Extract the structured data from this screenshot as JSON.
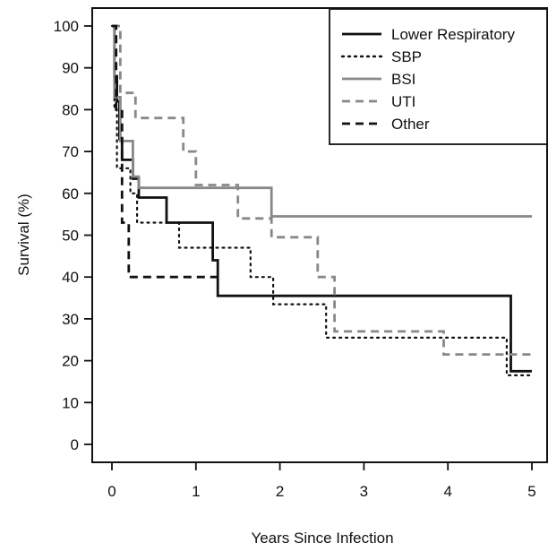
{
  "chart_data": {
    "type": "line",
    "title": "",
    "xlabel": "Years Since Infection",
    "ylabel": "Survival (%)",
    "xlim": [
      0,
      5
    ],
    "ylim": [
      0,
      100
    ],
    "xticks": [
      0,
      1,
      2,
      3,
      4,
      5
    ],
    "yticks": [
      0,
      10,
      20,
      30,
      40,
      50,
      60,
      70,
      80,
      90,
      100
    ],
    "grid": false,
    "legend_position": "top-right",
    "series": [
      {
        "name": "Lower Respiratory",
        "color": "#111111",
        "dash": "solid",
        "steps": [
          [
            0,
            100
          ],
          [
            0.03,
            88
          ],
          [
            0.06,
            82
          ],
          [
            0.09,
            73
          ],
          [
            0.12,
            68
          ],
          [
            0.25,
            63.5
          ],
          [
            0.32,
            59
          ],
          [
            0.65,
            53
          ],
          [
            1.2,
            44
          ],
          [
            1.26,
            35.5
          ],
          [
            4.75,
            17.5
          ],
          [
            5,
            17.5
          ]
        ]
      },
      {
        "name": "SBP",
        "color": "#111111",
        "dash": "dotted",
        "steps": [
          [
            0,
            100
          ],
          [
            0.03,
            80
          ],
          [
            0.06,
            66
          ],
          [
            0.22,
            60
          ],
          [
            0.3,
            53
          ],
          [
            0.8,
            47
          ],
          [
            1.65,
            40
          ],
          [
            1.92,
            33.5
          ],
          [
            2.55,
            25.5
          ],
          [
            4.7,
            16.5
          ],
          [
            5,
            16.5
          ]
        ]
      },
      {
        "name": "BSI",
        "color": "#888888",
        "dash": "solid",
        "steps": [
          [
            0,
            100
          ],
          [
            0.03,
            83
          ],
          [
            0.1,
            72.5
          ],
          [
            0.25,
            64
          ],
          [
            0.32,
            61.3
          ],
          [
            1.9,
            54.5
          ],
          [
            5,
            54.5
          ]
        ]
      },
      {
        "name": "UTI",
        "color": "#888888",
        "dash": "dashed",
        "steps": [
          [
            0,
            100
          ],
          [
            0.1,
            84
          ],
          [
            0.28,
            78
          ],
          [
            0.85,
            70
          ],
          [
            1.0,
            62
          ],
          [
            1.5,
            54
          ],
          [
            1.9,
            49.5
          ],
          [
            2.45,
            40
          ],
          [
            2.65,
            27
          ],
          [
            3.95,
            21.5
          ],
          [
            5,
            21.5
          ]
        ]
      },
      {
        "name": "Other",
        "color": "#111111",
        "dash": "dashed",
        "steps": [
          [
            0,
            100
          ],
          [
            0.05,
            80
          ],
          [
            0.12,
            53
          ],
          [
            0.2,
            40
          ],
          [
            1.3,
            40
          ]
        ]
      }
    ]
  }
}
